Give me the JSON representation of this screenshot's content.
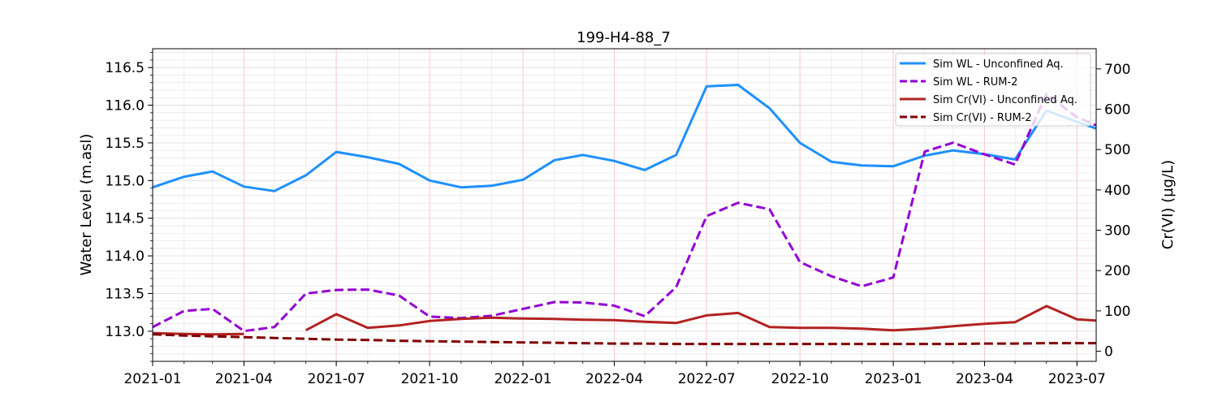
{
  "chart_data": {
    "type": "line",
    "title": "199-H4-88_7",
    "ylabel_left": "Water Level (m.asl)",
    "ylabel_right": "Cr(VI) (µg/L)",
    "xlim": [
      "2021-01-01",
      "2023-07-20"
    ],
    "ylim_left": [
      112.6,
      116.75
    ],
    "ylim_right": [
      -25,
      750
    ],
    "x_ticks": [
      "2021-01-01",
      "2021-04-01",
      "2021-07-01",
      "2021-10-01",
      "2022-01-01",
      "2022-04-01",
      "2022-07-01",
      "2022-10-01",
      "2023-01-01",
      "2023-04-01",
      "2023-07-01"
    ],
    "x_tick_labels": [
      "2021-01",
      "2021-04",
      "2021-07",
      "2021-10",
      "2022-01",
      "2022-04",
      "2022-07",
      "2022-10",
      "2023-01",
      "2023-04",
      "2023-07"
    ],
    "y_left_ticks": [
      113.0,
      113.5,
      114.0,
      114.5,
      115.0,
      115.5,
      116.0,
      116.5
    ],
    "y_left_tick_labels": [
      "113.0",
      "113.5",
      "114.0",
      "114.5",
      "115.0",
      "115.5",
      "116.0",
      "116.5"
    ],
    "y_right_ticks": [
      0,
      100,
      200,
      300,
      400,
      500,
      600,
      700
    ],
    "y_right_tick_labels": [
      "0",
      "100",
      "200",
      "300",
      "400",
      "500",
      "600",
      "700"
    ],
    "grid": true,
    "legend": "top-right",
    "series": [
      {
        "name": "Sim WL - Unconfined Aq.",
        "axis": "left",
        "color": "#1e90ff",
        "style": "solid",
        "x": [
          "2021-01-01",
          "2021-02-01",
          "2021-03-01",
          "2021-04-01",
          "2021-05-01",
          "2021-06-01",
          "2021-07-01",
          "2021-08-01",
          "2021-09-01",
          "2021-10-01",
          "2021-11-01",
          "2021-12-01",
          "2022-01-01",
          "2022-02-01",
          "2022-03-01",
          "2022-04-01",
          "2022-05-01",
          "2022-06-01",
          "2022-07-01",
          "2022-08-01",
          "2022-09-01",
          "2022-10-01",
          "2022-11-01",
          "2022-12-01",
          "2023-01-01",
          "2023-02-01",
          "2023-03-01",
          "2023-04-01",
          "2023-05-01",
          "2023-06-01",
          "2023-07-01",
          "2023-07-20"
        ],
        "y": [
          114.91,
          115.05,
          115.12,
          114.92,
          114.86,
          115.07,
          115.38,
          115.31,
          115.22,
          115.0,
          114.91,
          114.93,
          115.01,
          115.27,
          115.34,
          115.26,
          115.14,
          115.34,
          116.25,
          116.27,
          115.96,
          115.5,
          115.25,
          115.2,
          115.19,
          115.33,
          115.4,
          115.35,
          115.28,
          115.93,
          115.78,
          115.69
        ]
      },
      {
        "name": "Sim WL - RUM-2",
        "axis": "right",
        "color": "#9400d3",
        "style": "dashed",
        "x": [
          "2021-01-01",
          "2021-02-01",
          "2021-03-01",
          "2021-04-01",
          "2021-05-01",
          "2021-06-01",
          "2021-07-01",
          "2021-08-01",
          "2021-09-01",
          "2021-10-01",
          "2021-11-01",
          "2021-12-01",
          "2022-01-01",
          "2022-02-01",
          "2022-03-01",
          "2022-04-01",
          "2022-05-01",
          "2022-06-01",
          "2022-07-01",
          "2022-08-01",
          "2022-09-01",
          "2022-10-01",
          "2022-11-01",
          "2022-12-01",
          "2023-01-01",
          "2023-02-01",
          "2023-03-01",
          "2023-04-01",
          "2023-05-01",
          "2023-06-01",
          "2023-07-01",
          "2023-07-20"
        ],
        "y": [
          60,
          100,
          105,
          50,
          60,
          143,
          152,
          153,
          138,
          86,
          82,
          88,
          105,
          122,
          121,
          113,
          87,
          159,
          335,
          368,
          352,
          221,
          186,
          161,
          183,
          495,
          517,
          488,
          463,
          638,
          580,
          560
        ]
      },
      {
        "name": "Sim Cr(VI) - Unconfined Aq.",
        "axis": "right",
        "color": "#b22222",
        "style": "solid",
        "x": [
          "2021-01-01",
          "2021-02-01",
          "2021-03-01",
          "2021-04-01"
        ],
        "y": [
          45,
          43,
          42,
          43
        ]
      },
      {
        "name": "Sim Cr(VI) - Unconfined Aq. (cont.)",
        "axis": "right",
        "color": "#b22222",
        "style": "solid",
        "x": [
          "2021-06-01",
          "2021-07-01",
          "2021-08-01",
          "2021-09-01",
          "2021-10-01",
          "2021-11-01",
          "2021-12-01",
          "2022-01-01",
          "2022-02-01",
          "2022-03-01",
          "2022-04-01",
          "2022-05-01",
          "2022-06-01",
          "2022-07-01",
          "2022-08-01",
          "2022-09-01",
          "2022-10-01",
          "2022-11-01",
          "2022-12-01",
          "2023-01-01",
          "2023-02-01",
          "2023-03-01",
          "2023-04-01",
          "2023-05-01",
          "2023-06-01",
          "2023-07-01",
          "2023-07-20"
        ],
        "y": [
          52,
          92,
          58,
          64,
          75,
          80,
          83,
          81,
          80,
          78,
          77,
          73,
          70,
          89,
          95,
          60,
          58,
          58,
          56,
          52,
          56,
          62,
          68,
          72,
          112,
          79,
          76
        ]
      },
      {
        "name": "Sim Cr(VI) - RUM-2",
        "axis": "right",
        "color": "#800000",
        "style": "dashed",
        "x": [
          "2021-01-01",
          "2021-02-01",
          "2021-03-01",
          "2021-04-01",
          "2021-05-01",
          "2021-06-01",
          "2021-07-01",
          "2021-08-01",
          "2021-09-01",
          "2021-10-01",
          "2021-11-01",
          "2021-12-01",
          "2022-01-01",
          "2022-02-01",
          "2022-03-01",
          "2022-04-01",
          "2022-05-01",
          "2022-06-01",
          "2022-07-01",
          "2022-08-01",
          "2022-09-01",
          "2022-10-01",
          "2022-11-01",
          "2022-12-01",
          "2023-01-01",
          "2023-02-01",
          "2023-03-01",
          "2023-04-01",
          "2023-05-01",
          "2023-06-01",
          "2023-07-01",
          "2023-07-20"
        ],
        "y": [
          42,
          39,
          37,
          35,
          33,
          31,
          29,
          28,
          26,
          25,
          24,
          23,
          22,
          21,
          20,
          19,
          19,
          18,
          18,
          18,
          18,
          18,
          18,
          18,
          18,
          18,
          18,
          19,
          19,
          20,
          20,
          20
        ]
      }
    ],
    "legend_entries": [
      {
        "label": "Sim WL - Unconfined Aq.",
        "color": "#1e90ff",
        "style": "solid"
      },
      {
        "label": "Sim WL - RUM-2",
        "color": "#9400d3",
        "style": "dashed"
      },
      {
        "label": "Sim Cr(VI) - Unconfined Aq.",
        "color": "#b22222",
        "style": "solid"
      },
      {
        "label": "Sim Cr(VI) - RUM-2",
        "color": "#800000",
        "style": "dashed"
      }
    ]
  }
}
